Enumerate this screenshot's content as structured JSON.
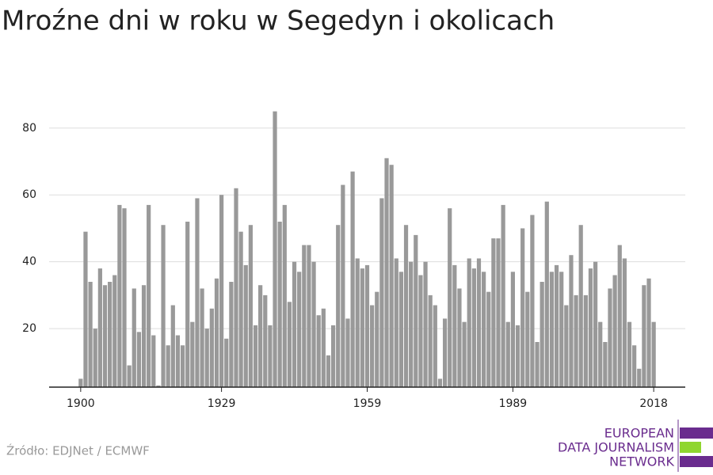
{
  "chart_data": {
    "type": "bar",
    "title": "Mroźne dni w roku w Segedyn i okolicach",
    "source": "Źródło: EDJNet / ECMWF",
    "logo": [
      "EUROPEAN",
      "DATA JOURNALISM",
      "NETWORK"
    ],
    "x": [
      1900,
      1901,
      1902,
      1903,
      1904,
      1905,
      1906,
      1907,
      1908,
      1909,
      1910,
      1911,
      1912,
      1913,
      1914,
      1915,
      1916,
      1917,
      1918,
      1919,
      1920,
      1921,
      1922,
      1923,
      1924,
      1925,
      1926,
      1927,
      1928,
      1929,
      1930,
      1931,
      1932,
      1933,
      1934,
      1935,
      1936,
      1937,
      1938,
      1939,
      1940,
      1941,
      1942,
      1943,
      1944,
      1945,
      1946,
      1947,
      1948,
      1949,
      1950,
      1951,
      1952,
      1953,
      1954,
      1955,
      1956,
      1957,
      1958,
      1959,
      1960,
      1961,
      1962,
      1963,
      1964,
      1965,
      1966,
      1967,
      1968,
      1969,
      1970,
      1971,
      1972,
      1973,
      1974,
      1975,
      1976,
      1977,
      1978,
      1979,
      1980,
      1981,
      1982,
      1983,
      1984,
      1985,
      1986,
      1987,
      1988,
      1989,
      1990,
      1991,
      1992,
      1993,
      1994,
      1995,
      1996,
      1997,
      1998,
      1999,
      2000,
      2001,
      2002,
      2003,
      2004,
      2005,
      2006,
      2007,
      2008,
      2009,
      2010,
      2011,
      2012,
      2013,
      2014,
      2015,
      2016,
      2017,
      2018
    ],
    "values": [
      5,
      49,
      34,
      20,
      38,
      33,
      34,
      36,
      57,
      56,
      9,
      32,
      19,
      33,
      57,
      18,
      3,
      51,
      15,
      27,
      18,
      15,
      52,
      22,
      59,
      32,
      20,
      26,
      35,
      60,
      17,
      34,
      62,
      49,
      39,
      51,
      21,
      33,
      30,
      21,
      85,
      52,
      57,
      28,
      40,
      37,
      45,
      45,
      40,
      24,
      26,
      12,
      21,
      51,
      63,
      23,
      67,
      41,
      38,
      39,
      27,
      31,
      59,
      71,
      69,
      41,
      37,
      51,
      40,
      48,
      36,
      40,
      30,
      27,
      5,
      23,
      56,
      39,
      32,
      22,
      41,
      38,
      41,
      37,
      31,
      47,
      47,
      57,
      22,
      37,
      21,
      50,
      31,
      54,
      16,
      34,
      58,
      37,
      39,
      37,
      27,
      42,
      30,
      51,
      30,
      38,
      40,
      22,
      16,
      32,
      36,
      45,
      41,
      22,
      15,
      8,
      33,
      35,
      22
    ],
    "color": "#999999",
    "xlim": [
      1893.5,
      2024.5
    ],
    "xticks": [
      1900,
      1929,
      1959,
      1989,
      2018
    ],
    "ylim": [
      2.5,
      88
    ],
    "yticks": [
      20,
      40,
      60,
      80
    ],
    "grid": true
  }
}
